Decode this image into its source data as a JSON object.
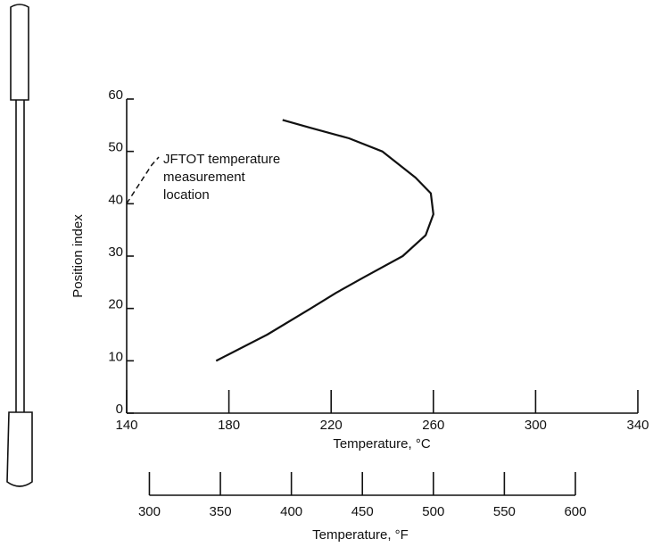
{
  "chart_data": {
    "type": "line",
    "x": [
      175,
      195,
      212,
      222,
      233,
      248,
      257,
      260,
      259,
      253,
      240,
      227,
      212,
      201
    ],
    "series": [
      {
        "name": null,
        "color": "#111111",
        "values": [
          10,
          15,
          20,
          23,
          26,
          30,
          34,
          38,
          42,
          45,
          50,
          52.5,
          54.5,
          56
        ]
      }
    ],
    "xlabel": "Temperature, °C",
    "ylabel": "Position index",
    "xlim": [
      140,
      340
    ],
    "xticks": [
      140,
      180,
      220,
      260,
      300,
      340
    ],
    "ylim": [
      0,
      60
    ],
    "yticks": [
      0,
      10,
      20,
      30,
      40,
      50,
      60
    ],
    "x2label": "Temperature, °F",
    "x2lim": [
      300,
      600
    ],
    "x2ticks": [
      300,
      350,
      400,
      450,
      500,
      550,
      600
    ],
    "annotation": [
      "JFTOT temperature",
      "measurement",
      "location"
    ]
  }
}
